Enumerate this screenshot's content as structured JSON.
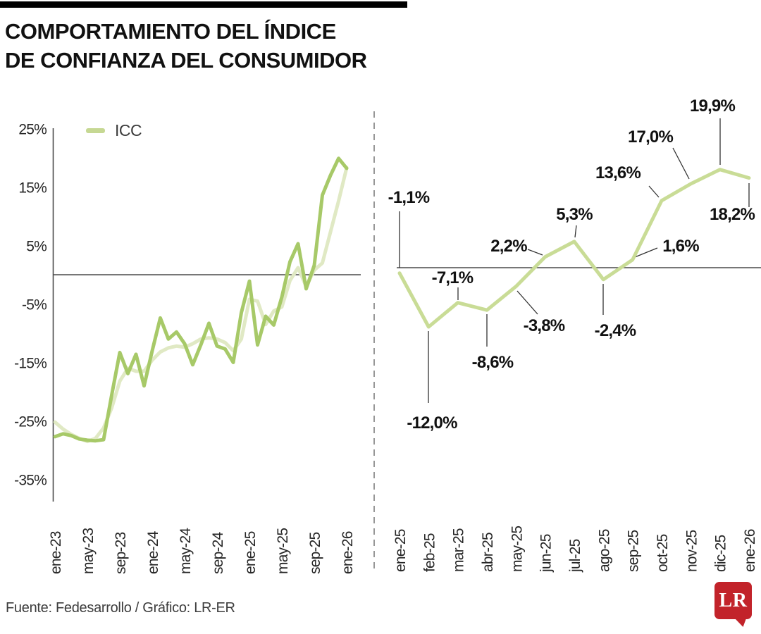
{
  "header": {
    "title_line1": "COMPORTAMIENTO DEL ÍNDICE",
    "title_line2": "DE CONFIANZA DEL CONSUMIDOR"
  },
  "legend": {
    "label": "ICC",
    "swatch_color": "#c6d893"
  },
  "footer": {
    "source": "Fuente: Fedesarrollo / Gráfico: LR-ER",
    "logo_text": "LR"
  },
  "colors": {
    "icc_dark_line": "#a7c968",
    "icc_light_line": "#e0e9c4",
    "right_line": "#c9dc96",
    "axis": "#4a4a4a",
    "divider": "#979797",
    "leader": "#333333",
    "logo_red": "#c2232a"
  },
  "chart_data": [
    {
      "type": "line",
      "title": "",
      "legend_entries": [
        "ICC"
      ],
      "x": [
        "ene-23",
        "feb-23",
        "mar-23",
        "abr-23",
        "may-23",
        "jun-23",
        "jul-23",
        "ago-23",
        "sep-23",
        "oct-23",
        "nov-23",
        "dic-23",
        "ene-24",
        "feb-24",
        "mar-24",
        "abr-24",
        "may-24",
        "jun-24",
        "jul-24",
        "ago-24",
        "sep-24",
        "oct-24",
        "nov-24",
        "dic-24",
        "ene-25",
        "feb-25",
        "mar-25",
        "abr-25",
        "may-25",
        "jun-25",
        "jul-25",
        "ago-25",
        "sep-25",
        "oct-25",
        "nov-25",
        "dic-25",
        "ene-26"
      ],
      "series": [
        {
          "name": "ICC",
          "color": "#a7c968",
          "values": [
            -27.7,
            -27.2,
            -27.5,
            -28.1,
            -28.3,
            -28.4,
            -28.2,
            -20.6,
            -13.3,
            -16.9,
            -13.6,
            -19.0,
            -13.0,
            -7.4,
            -11.0,
            -9.8,
            -11.8,
            -15.4,
            -12.0,
            -8.3,
            -12.2,
            -12.7,
            -15.0,
            -6.5,
            -1.1,
            -12.0,
            -7.1,
            -8.6,
            -3.8,
            2.2,
            5.3,
            -2.4,
            1.6,
            13.6,
            17.0,
            19.9,
            18.2
          ]
        },
        {
          "name": "",
          "color": "#e0e9c4",
          "values": [
            -25.2,
            -26.4,
            -27.3,
            -28.0,
            -28.5,
            -28.0,
            -26.2,
            -22.8,
            -18.2,
            -16.0,
            -16.5,
            -16.5,
            -14.6,
            -13.2,
            -12.5,
            -12.2,
            -12.4,
            -11.8,
            -11.0,
            -10.8,
            -11.0,
            -11.6,
            -13.0,
            -11.0,
            -4.2,
            -4.5,
            -8.5,
            -6.2,
            -5.5,
            -1.0,
            1.2,
            -2.0,
            0.8,
            2.0,
            7.3,
            12.6,
            18.3
          ]
        }
      ],
      "y_tick_values": [
        25,
        15,
        5,
        -5,
        -15,
        -25,
        -35
      ],
      "y_tick_labels": [
        "25%",
        "15%",
        "5%",
        "-5%",
        "-15%",
        "-25%",
        "-35%"
      ],
      "x_tick_indices": [
        0,
        4,
        8,
        12,
        16,
        20,
        24,
        28,
        32,
        36
      ],
      "x_tick_labels": [
        "ene-23",
        "may-23",
        "sep-23",
        "ene-24",
        "may-24",
        "sep-24",
        "ene-25",
        "may-25",
        "sep-25",
        "ene-26"
      ],
      "ylim": [
        -37,
        27
      ],
      "grid": false,
      "legend_position": "top-left"
    },
    {
      "type": "line",
      "title": "",
      "x": [
        "ene-25",
        "feb-25",
        "mar-25",
        "abr-25",
        "may-25",
        "jun-25",
        "jul-25",
        "ago-25",
        "sep-25",
        "oct-25",
        "nov-25",
        "dic-25",
        "ene-26"
      ],
      "values": [
        -1.1,
        -12.0,
        -7.1,
        -8.6,
        -3.8,
        2.2,
        5.3,
        -2.4,
        1.6,
        13.6,
        17.0,
        19.9,
        18.2
      ],
      "labels": [
        "-1,1%",
        "-12,0%",
        "-7,1%",
        "-8,6%",
        "-3,8%",
        "2,2%",
        "5,3%",
        "-2,4%",
        "1,6%",
        "13,6%",
        "17,0%",
        "19,9%",
        "18,2%"
      ],
      "grid": false
    }
  ]
}
